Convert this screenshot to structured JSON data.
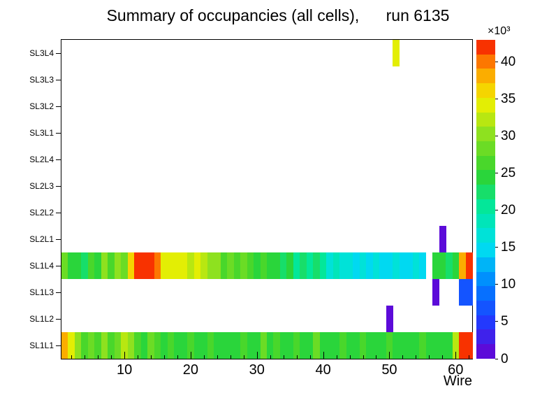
{
  "chart_data": {
    "type": "heatmap",
    "title": "Summary of occupancies (all cells),      run 6135",
    "x_label": "Wire",
    "scale_label": "×10³",
    "n_wires": 62,
    "x_ticks": [
      10,
      20,
      30,
      40,
      50,
      60
    ],
    "row_labels": [
      "SL3L4",
      "SL3L3",
      "SL3L2",
      "SL3L1",
      "SL2L4",
      "SL2L3",
      "SL2L2",
      "SL2L1",
      "SL1L4",
      "SL1L3",
      "SL1L2",
      "SL1L1"
    ],
    "zmax": 43000,
    "colorbar_ticks": [
      0,
      5,
      10,
      15,
      20,
      25,
      30,
      35,
      40
    ],
    "palette_stops": [
      [
        0.0,
        "#6a00d0"
      ],
      [
        0.12,
        "#1f3cff"
      ],
      [
        0.23,
        "#0080ff"
      ],
      [
        0.35,
        "#00e0f0"
      ],
      [
        0.47,
        "#00e8a0"
      ],
      [
        0.58,
        "#2fd32f"
      ],
      [
        0.7,
        "#8ae020"
      ],
      [
        0.81,
        "#f0f000"
      ],
      [
        0.91,
        "#ff9800"
      ],
      [
        1.0,
        "#f50f00"
      ]
    ],
    "cells": {
      "SL3L4": {
        "51": 35000
      },
      "SL2L1": {
        "58": 1500
      },
      "SL1L4": [
        29000,
        24000,
        25000,
        23000,
        26000,
        24000,
        30000,
        26000,
        31000,
        29000,
        36000,
        42000,
        43000,
        42000,
        40000,
        35000,
        34000,
        35000,
        34000,
        33000,
        34000,
        33000,
        31000,
        30000,
        27000,
        28000,
        26000,
        29000,
        26000,
        25000,
        27000,
        24000,
        25000,
        22000,
        24000,
        21000,
        22000,
        20000,
        23000,
        20000,
        17000,
        18000,
        16000,
        17000,
        15000,
        16000,
        15000,
        16000,
        15000,
        15000,
        16000,
        15000,
        15000,
        16000,
        15000,
        0,
        24000,
        25000,
        23000,
        25000,
        39000,
        43000
      ],
      "SL1L3": {
        "57": 1500,
        "61": 6000,
        "62": 6000
      },
      "SL1L2": {
        "50": 1500
      },
      "SL1L1": [
        38000,
        34000,
        30000,
        27000,
        29000,
        26000,
        30000,
        27000,
        29000,
        32000,
        30000,
        26000,
        25000,
        28000,
        26000,
        25000,
        26000,
        24000,
        25000,
        26000,
        24000,
        25000,
        26000,
        24000,
        25000,
        24000,
        25000,
        26000,
        24000,
        25000,
        28000,
        25000,
        26000,
        24000,
        25000,
        26000,
        24000,
        25000,
        28000,
        25000,
        24000,
        25000,
        26000,
        24000,
        25000,
        27000,
        25000,
        24000,
        25000,
        26000,
        24000,
        25000,
        24000,
        25000,
        26000,
        24000,
        25000,
        24000,
        25000,
        33000,
        42000,
        43000
      ]
    }
  }
}
